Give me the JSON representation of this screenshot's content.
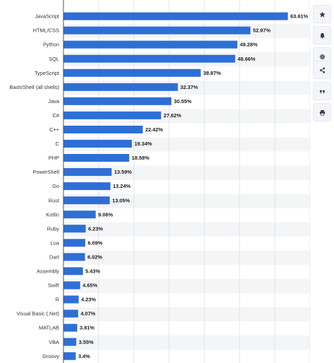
{
  "chart_data": {
    "type": "bar",
    "orientation": "horizontal",
    "categories": [
      "JavaScript",
      "HTML/CSS",
      "Python",
      "SQL",
      "TypeScript",
      "Bash/Shell (all shells)",
      "Java",
      "C#",
      "C++",
      "C",
      "PHP",
      "PowerShell",
      "Go",
      "Rust",
      "Kotlin",
      "Ruby",
      "Lua",
      "Dart",
      "Assembly",
      "Swift",
      "R",
      "Visual Basic (.Net)",
      "MATLAB",
      "VBA",
      "Groovy"
    ],
    "values": [
      63.61,
      52.97,
      49.28,
      48.66,
      38.87,
      32.37,
      30.55,
      27.62,
      22.42,
      19.34,
      18.58,
      13.59,
      13.24,
      13.05,
      9.06,
      6.23,
      6.09,
      6.02,
      5.43,
      4.65,
      4.23,
      4.07,
      3.81,
      3.55,
      3.4
    ],
    "value_labels": [
      "63.61%",
      "52.97%",
      "49.28%",
      "48.66%",
      "38.87%",
      "32.37%",
      "30.55%",
      "27.62%",
      "22.42%",
      "19.34%",
      "18.58%",
      "13.59%",
      "13.24%",
      "13.05%",
      "9.06%",
      "6.23%",
      "6.09%",
      "6.02%",
      "5.43%",
      "4.65%",
      "4.23%",
      "4.07%",
      "3.81%",
      "3.55%",
      "3.4%"
    ],
    "xlim": [
      0,
      70
    ],
    "grid": true,
    "bar_color": "#2e6fd6"
  },
  "sidebar": {
    "buttons": [
      {
        "name": "favorite-star",
        "icon": "star-icon"
      },
      {
        "name": "notification-bell",
        "icon": "bell-icon"
      },
      {
        "name": "settings-gear",
        "icon": "gear-icon"
      },
      {
        "name": "share",
        "icon": "share-icon"
      },
      {
        "name": "cite-quote",
        "icon": "quote-icon"
      },
      {
        "name": "print",
        "icon": "print-icon"
      }
    ]
  }
}
